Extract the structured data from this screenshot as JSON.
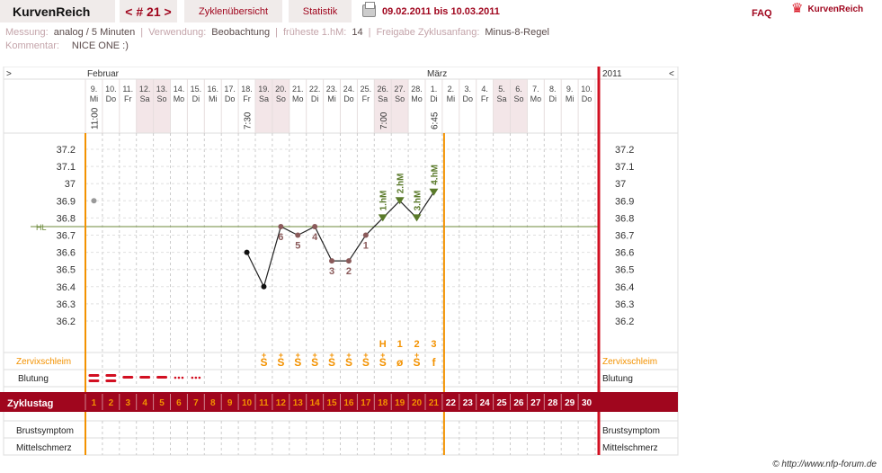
{
  "header": {
    "logo": "KurvenReich",
    "cycle_label": "< # 21 >",
    "tabs": [
      "Zyklenübersicht",
      "Statistik"
    ],
    "print_icon": "printer-icon",
    "date_range": "09.02.2011 bis 10.03.2011",
    "faq": "FAQ",
    "brand": "KurvenReich",
    "brand_icon": "crown-icon"
  },
  "info": {
    "messung_label": "Messung:",
    "messung_value": "analog / 5 Minuten",
    "verwendung_label": "Verwendung:",
    "verwendung_value": "Beobachtung",
    "hm_label": "früheste 1.hM:",
    "hm_value": "14",
    "freigabe_label": "Freigabe Zyklusanfang:",
    "freigabe_value": "Minus-8-Regel",
    "kommentar_label": "Kommentar:",
    "kommentar_value": "NICE ONE :)"
  },
  "chart_data": {
    "type": "line",
    "year": "2011",
    "months": [
      {
        "label": "Februar",
        "day_index": 0
      },
      {
        "label": "März",
        "day_index": 20
      }
    ],
    "days": [
      {
        "d": "9.",
        "w": "Mi",
        "time": "11:00"
      },
      {
        "d": "10.",
        "w": "Do"
      },
      {
        "d": "11.",
        "w": "Fr"
      },
      {
        "d": "12.",
        "w": "Sa",
        "weekend": true
      },
      {
        "d": "13.",
        "w": "So",
        "weekend": true
      },
      {
        "d": "14.",
        "w": "Mo"
      },
      {
        "d": "15.",
        "w": "Di"
      },
      {
        "d": "16.",
        "w": "Mi"
      },
      {
        "d": "17.",
        "w": "Do"
      },
      {
        "d": "18.",
        "w": "Fr",
        "time": "7:30"
      },
      {
        "d": "19.",
        "w": "Sa",
        "weekend": true
      },
      {
        "d": "20.",
        "w": "So",
        "weekend": true
      },
      {
        "d": "21.",
        "w": "Mo"
      },
      {
        "d": "22.",
        "w": "Di"
      },
      {
        "d": "23.",
        "w": "Mi"
      },
      {
        "d": "24.",
        "w": "Do"
      },
      {
        "d": "25.",
        "w": "Fr"
      },
      {
        "d": "26.",
        "w": "Sa",
        "weekend": true,
        "time": "7:00"
      },
      {
        "d": "27.",
        "w": "So",
        "weekend": true
      },
      {
        "d": "28.",
        "w": "Mo"
      },
      {
        "d": "1.",
        "w": "Di",
        "time": "6:45"
      },
      {
        "d": "2.",
        "w": "Mi"
      },
      {
        "d": "3.",
        "w": "Do"
      },
      {
        "d": "4.",
        "w": "Fr"
      },
      {
        "d": "5.",
        "w": "Sa",
        "weekend": true
      },
      {
        "d": "6.",
        "w": "So",
        "weekend": true
      },
      {
        "d": "7.",
        "w": "Mo"
      },
      {
        "d": "8.",
        "w": "Di"
      },
      {
        "d": "9.",
        "w": "Mi"
      },
      {
        "d": "10.",
        "w": "Do"
      }
    ],
    "y_ticks": [
      "37.2",
      "37.1",
      "37",
      "36.9",
      "36.8",
      "36.7",
      "36.6",
      "36.5",
      "36.4",
      "36.3",
      "36.2"
    ],
    "ylim": [
      36.1,
      37.3
    ],
    "hl_label": "HL",
    "hl_value": 36.75,
    "outlier": {
      "day": 0,
      "temp": 36.9
    },
    "temps": [
      {
        "day": 9,
        "temp": 36.6
      },
      {
        "day": 10,
        "temp": 36.4
      },
      {
        "day": 11,
        "temp": 36.75,
        "label": "6"
      },
      {
        "day": 12,
        "temp": 36.7,
        "label": "5"
      },
      {
        "day": 13,
        "temp": 36.75,
        "label": "4"
      },
      {
        "day": 14,
        "temp": 36.55,
        "label": "3"
      },
      {
        "day": 15,
        "temp": 36.55,
        "label": "2"
      },
      {
        "day": 16,
        "temp": 36.7,
        "label": "1"
      },
      {
        "day": 17,
        "temp": 36.8,
        "hm": "1.hM"
      },
      {
        "day": 18,
        "temp": 36.9,
        "hm": "2.hM"
      },
      {
        "day": 19,
        "temp": 36.8,
        "hm": "3.hM"
      },
      {
        "day": 20,
        "temp": 36.95,
        "hm": "4.hM"
      }
    ],
    "peak_labels": [
      {
        "day": 17,
        "t": "H"
      },
      {
        "day": 18,
        "t": "1"
      },
      {
        "day": 19,
        "t": "2"
      },
      {
        "day": 20,
        "t": "3"
      }
    ],
    "mucus": [
      {
        "day": 10,
        "t": "S"
      },
      {
        "day": 11,
        "t": "S"
      },
      {
        "day": 12,
        "t": "S"
      },
      {
        "day": 13,
        "t": "S"
      },
      {
        "day": 14,
        "t": "S"
      },
      {
        "day": 15,
        "t": "S"
      },
      {
        "day": 16,
        "t": "S"
      },
      {
        "day": 17,
        "t": "S"
      },
      {
        "day": 18,
        "t": "ø"
      },
      {
        "day": 19,
        "t": "S"
      },
      {
        "day": 20,
        "t": "f"
      }
    ],
    "bleeding": [
      "heavy",
      "heavy",
      "medium",
      "medium",
      "medium",
      "light",
      "light"
    ],
    "cycle_days": [
      "1",
      "2",
      "3",
      "4",
      "5",
      "6",
      "7",
      "8",
      "9",
      "10",
      "11",
      "12",
      "13",
      "14",
      "15",
      "16",
      "17",
      "18",
      "19",
      "20",
      "21",
      "22",
      "23",
      "24",
      "25",
      "26",
      "27",
      "28",
      "29",
      "30"
    ],
    "row_labels": {
      "mucus": "Zervixschleim",
      "bleeding": "Blutung",
      "cycle": "Zyklustag",
      "breast": "Brustsymptom",
      "pain": "Mittelschmerz"
    },
    "nav": {
      "left": ">",
      "right": "<"
    },
    "colors": {
      "accent": "#a0061e",
      "orange": "#f39200",
      "hl": "#6c8a3a",
      "point": "#8a5a5a",
      "hm": "#5a7a2a",
      "weekend": "#f3e6e8"
    }
  },
  "footer": {
    "copyright": "© http://www.nfp-forum.de"
  }
}
